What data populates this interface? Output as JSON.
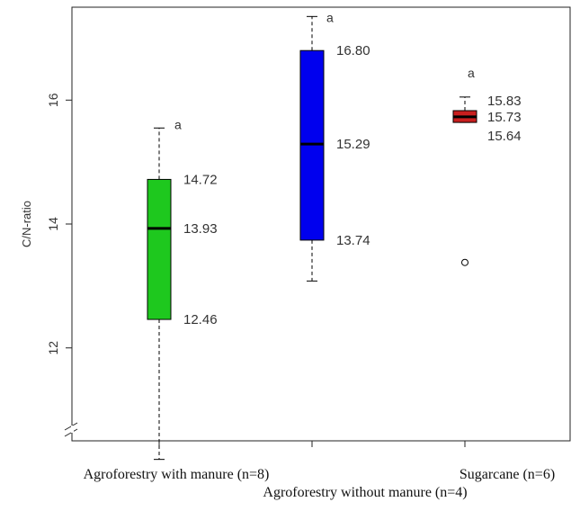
{
  "chart_data": {
    "type": "boxplot",
    "ylabel": "C/N-ratio",
    "y_axis_break": true,
    "yticks": [
      12,
      14,
      16
    ],
    "ylim": [
      10.5,
      17.5
    ],
    "categories": [
      "Agroforestry with manure (n=8)",
      "Agroforestry without manure (n=4)",
      "Sugarcane (n=6)"
    ],
    "boxes": [
      {
        "category": "Agroforestry with manure (n=8)",
        "color": "#1ec81e",
        "whisker_low": 10.2,
        "q1": 12.46,
        "median": 13.93,
        "q3": 14.72,
        "whisker_high": 15.55,
        "q1_label": "12.46",
        "median_label": "13.93",
        "q3_label": "14.72",
        "significance": "a",
        "outliers": []
      },
      {
        "category": "Agroforestry without manure (n=4)",
        "color": "#0000ee",
        "whisker_low": 13.08,
        "q1": 13.74,
        "median": 15.29,
        "q3": 16.8,
        "whisker_high": 17.35,
        "q1_label": "13.74",
        "median_label": "15.29",
        "q3_label": "16.80",
        "significance": "a",
        "outliers": []
      },
      {
        "category": "Sugarcane (n=6)",
        "color": "#c81e1e",
        "whisker_low": 15.64,
        "q1": 15.64,
        "median": 15.73,
        "q3": 15.83,
        "whisker_high": 16.05,
        "q1_label": "15.64",
        "median_label": "15.73",
        "q3_label": "15.83",
        "significance": "a",
        "outliers": [
          13.38
        ]
      }
    ]
  }
}
